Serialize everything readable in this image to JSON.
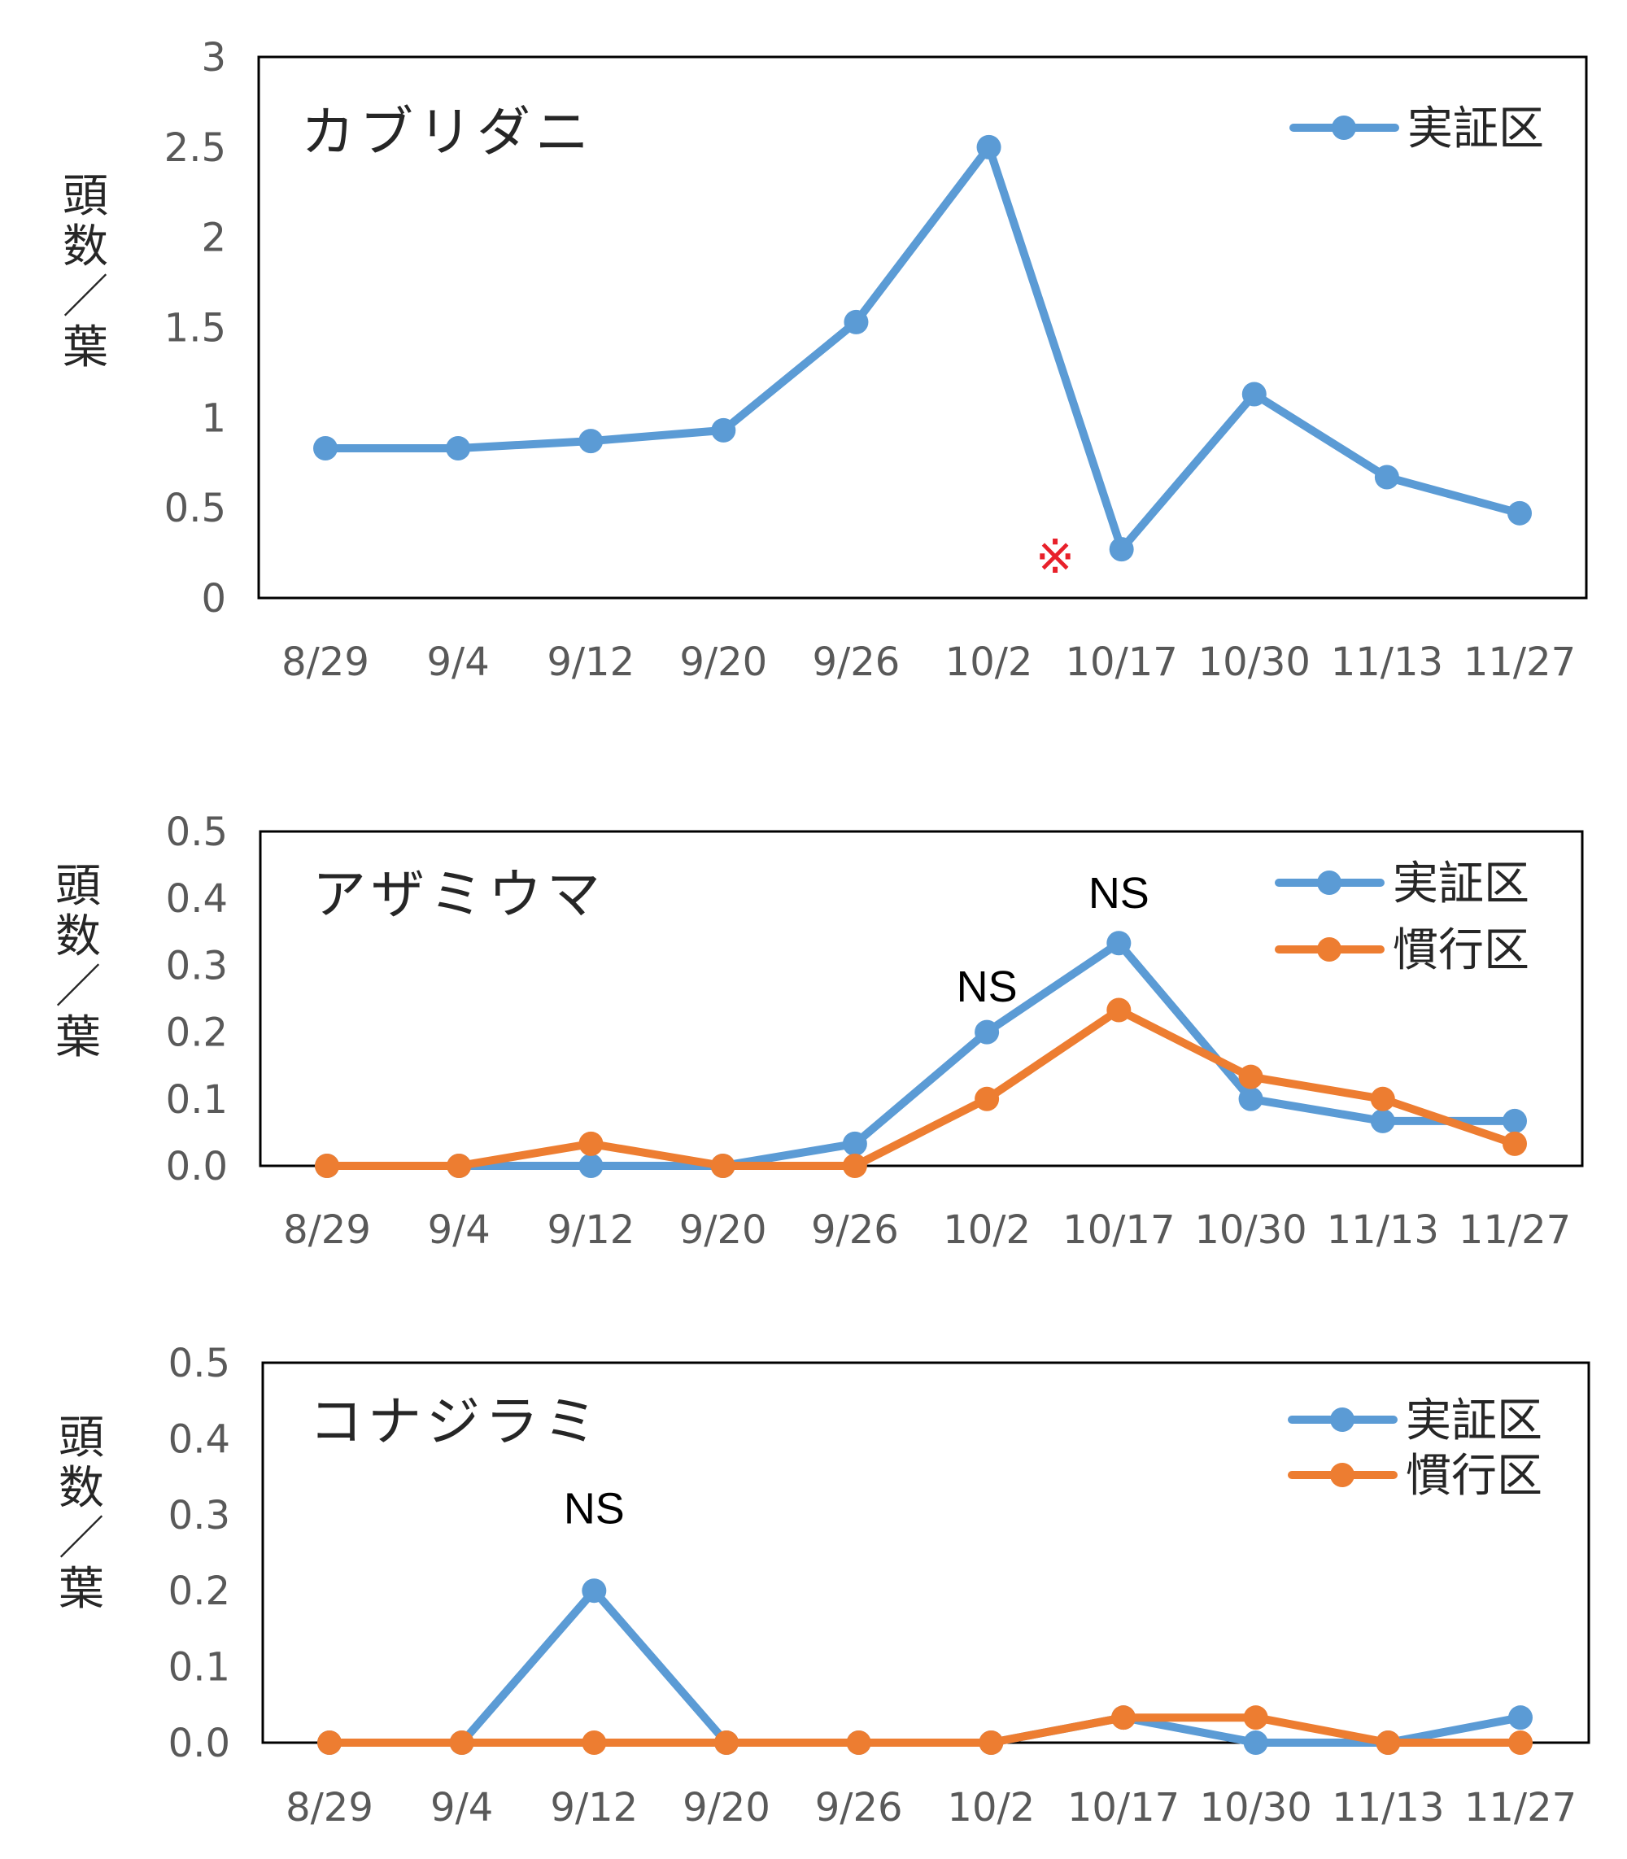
{
  "colors": {
    "demo": "#5b9bd5",
    "conventional": "#ed7d31",
    "frame": "#000000",
    "tick_text": "#595959",
    "annotation_red": "#e8202a"
  },
  "chart_data": [
    {
      "type": "line",
      "title": "カブリダニ",
      "ylabel": "頭数／葉",
      "categories": [
        "8/29",
        "9/4",
        "9/12",
        "9/20",
        "9/26",
        "10/2",
        "10/17",
        "10/30",
        "11/13",
        "11/27"
      ],
      "ylim": [
        0,
        3
      ],
      "yticks": [
        "0",
        "0.5",
        "1",
        "1.5",
        "2",
        "2.5",
        "3"
      ],
      "grid": false,
      "legend_position": "top-right",
      "series": [
        {
          "name": "実証区",
          "color": "#5b9bd5",
          "values": [
            0.83,
            0.83,
            0.87,
            0.93,
            1.53,
            2.5,
            0.27,
            1.13,
            0.67,
            0.47
          ]
        }
      ],
      "annotations": [
        {
          "text": "※",
          "between": [
            "10/2",
            "10/17"
          ],
          "y": 0.23,
          "color": "#e8202a"
        }
      ]
    },
    {
      "type": "line",
      "title": "アザミウマ",
      "ylabel": "頭数／葉",
      "categories": [
        "8/29",
        "9/4",
        "9/12",
        "9/20",
        "9/26",
        "10/2",
        "10/17",
        "10/30",
        "11/13",
        "11/27"
      ],
      "ylim": [
        0,
        0.5
      ],
      "yticks": [
        "0.0",
        "0.1",
        "0.2",
        "0.3",
        "0.4",
        "0.5"
      ],
      "grid": false,
      "legend_position": "top-right",
      "series": [
        {
          "name": "実証区",
          "color": "#5b9bd5",
          "values": [
            0,
            0,
            0,
            0,
            0.033,
            0.2,
            0.333,
            0.1,
            0.067,
            0.067
          ]
        },
        {
          "name": "慣行区",
          "color": "#ed7d31",
          "values": [
            0,
            0,
            0.033,
            0,
            0,
            0.1,
            0.233,
            0.133,
            0.1,
            0.033
          ]
        }
      ],
      "annotations": [
        {
          "text": "NS",
          "category": "10/2",
          "y": 0.27
        },
        {
          "text": "NS",
          "category": "10/17",
          "y": 0.41
        }
      ]
    },
    {
      "type": "line",
      "title": "コナジラミ",
      "ylabel": "頭数／葉",
      "categories": [
        "8/29",
        "9/4",
        "9/12",
        "9/20",
        "9/26",
        "10/2",
        "10/17",
        "10/30",
        "11/13",
        "11/27"
      ],
      "ylim": [
        0,
        0.5
      ],
      "yticks": [
        "0.0",
        "0.1",
        "0.2",
        "0.3",
        "0.4",
        "0.5"
      ],
      "grid": false,
      "legend_position": "top-right",
      "series": [
        {
          "name": "実証区",
          "color": "#5b9bd5",
          "values": [
            0,
            0,
            0.2,
            0,
            0,
            0,
            0.033,
            0,
            0,
            0.033
          ]
        },
        {
          "name": "慣行区",
          "color": "#ed7d31",
          "values": [
            0,
            0,
            0,
            0,
            0,
            0,
            0.033,
            0.033,
            0,
            0
          ]
        }
      ],
      "annotations": [
        {
          "text": "NS",
          "category": "9/12",
          "y": 0.31
        }
      ]
    }
  ]
}
